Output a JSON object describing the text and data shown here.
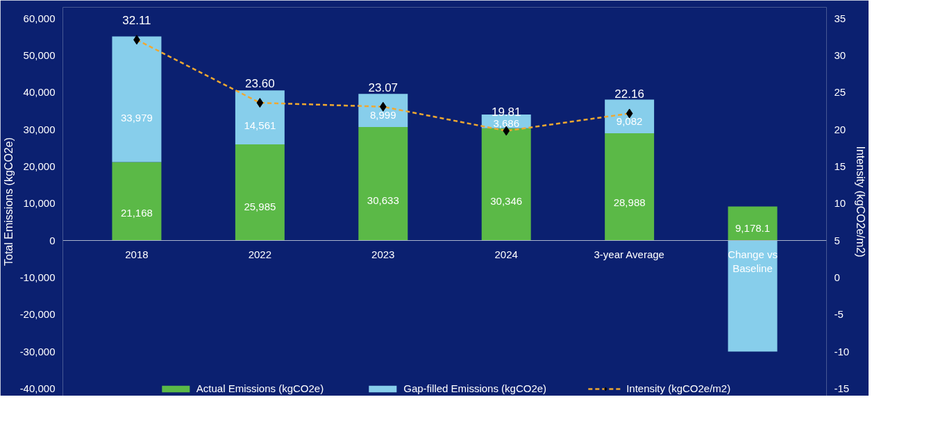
{
  "chart_data": {
    "type": "bar",
    "stacked": true,
    "categories": [
      "2018",
      "2022",
      "2023",
      "2024",
      "3-year Average",
      "Change vs Baseline"
    ],
    "ylabel": "Total Emissions (kgCO2e)",
    "y2label": "Intensity (kgCO2e/m2)",
    "ylim": [
      -42000,
      63000
    ],
    "yticks": [
      {
        "value": -40000,
        "label": "-40,000"
      },
      {
        "value": -30000,
        "label": "-30,000"
      },
      {
        "value": -20000,
        "label": "-20,000"
      },
      {
        "value": -10000,
        "label": "-10,000"
      },
      0,
      {
        "value": 10000,
        "label": "10,000"
      },
      {
        "value": 20000,
        "label": "20,000"
      },
      {
        "value": 30000,
        "label": "30,000"
      },
      {
        "value": 40000,
        "label": "40,000"
      },
      {
        "value": 50000,
        "label": "50,000"
      },
      {
        "value": 60000,
        "label": "60,000"
      }
    ],
    "y2lim": [
      -16,
      36.5
    ],
    "y2ticks": [
      -15,
      -10,
      -5,
      0,
      5,
      10,
      15,
      20,
      25,
      30,
      35
    ],
    "grid": false,
    "legend": "bottom",
    "series": [
      {
        "name": "Actual Emissions (kgCO2e)",
        "color": "#5bb947",
        "values": [
          21168,
          25985,
          30633,
          30346,
          28988,
          9178.1
        ],
        "value_labels": [
          "21,168",
          "25,985",
          "30,633",
          "30,346",
          "28,988",
          "9,178.1"
        ]
      },
      {
        "name": "Gap-filled Emissions (kgCO2e)",
        "color": "#87ceeb",
        "values": [
          33979,
          14561,
          8999,
          3686,
          9082,
          -30000
        ],
        "value_labels": [
          "33,979",
          "14,561",
          "8,999",
          "3,686",
          "9,082",
          null
        ]
      },
      {
        "name": "Intensity (kgCO2e/m2)",
        "type": "line",
        "axis": "y2",
        "color": "#f0a830",
        "line_style": "dashed",
        "marker": "diamond",
        "values": [
          32.11,
          23.6,
          23.07,
          19.81,
          22.16,
          null
        ],
        "value_labels": [
          "32.11",
          "23.60",
          "23.07",
          "19.81",
          "22.16",
          null
        ]
      }
    ]
  }
}
